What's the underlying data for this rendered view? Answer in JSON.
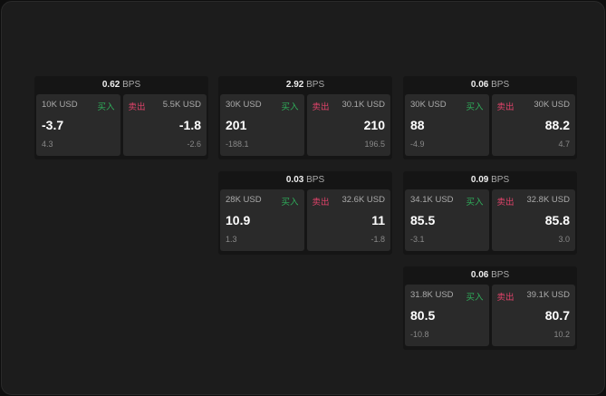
{
  "buy_label": "买入",
  "sell_label": "卖出",
  "unit": "BPS",
  "colors": {
    "buy": "#2fae5b",
    "sell": "#e0436a"
  },
  "cards": [
    {
      "spread": "0.62",
      "buy": {
        "size": "10K USD",
        "price": "-3.7",
        "change": "4.3"
      },
      "sell": {
        "size": "5.5K USD",
        "price": "-1.8",
        "change": "-2.6"
      }
    },
    {
      "spread": "2.92",
      "buy": {
        "size": "30K USD",
        "price": "201",
        "change": "-188.1"
      },
      "sell": {
        "size": "30.1K USD",
        "price": "210",
        "change": "196.5"
      }
    },
    {
      "spread": "0.06",
      "buy": {
        "size": "30K USD",
        "price": "88",
        "change": "-4.9"
      },
      "sell": {
        "size": "30K USD",
        "price": "88.2",
        "change": "4.7"
      }
    },
    {
      "spread": "0.03",
      "buy": {
        "size": "28K USD",
        "price": "10.9",
        "change": "1.3"
      },
      "sell": {
        "size": "32.6K USD",
        "price": "11",
        "change": "-1.8"
      }
    },
    {
      "spread": "0.09",
      "buy": {
        "size": "34.1K USD",
        "price": "85.5",
        "change": "-3.1"
      },
      "sell": {
        "size": "32.8K USD",
        "price": "85.8",
        "change": "3.0"
      }
    },
    {
      "spread": "0.06",
      "buy": {
        "size": "31.8K USD",
        "price": "80.5",
        "change": "-10.8"
      },
      "sell": {
        "size": "39.1K USD",
        "price": "80.7",
        "change": "10.2"
      }
    }
  ]
}
